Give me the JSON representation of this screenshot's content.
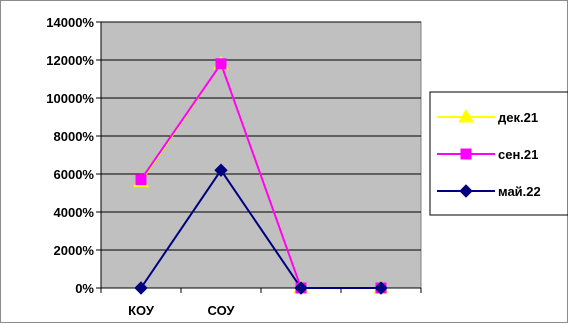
{
  "chart_data": {
    "type": "line",
    "categories": [
      "КОУ",
      "СОУ",
      "",
      ""
    ],
    "y_axis": {
      "min": 0,
      "max": 14000,
      "step": 2000,
      "tick_labels": [
        "0%",
        "2000%",
        "4000%",
        "6000%",
        "8000%",
        "10000%",
        "12000%",
        "14000%"
      ]
    },
    "grid": true,
    "legend_position": "right",
    "plot_background": "#c0c0c0",
    "series": [
      {
        "name": "дек.21",
        "color": "#ffff00",
        "marker": "triangle",
        "values": [
          5600,
          11800,
          0,
          0
        ]
      },
      {
        "name": "сен.21",
        "color": "#ff00ff",
        "marker": "square",
        "values": [
          5700,
          11800,
          0,
          0
        ]
      },
      {
        "name": "май.22",
        "color": "#000080",
        "marker": "diamond",
        "values": [
          0,
          6200,
          0,
          0
        ]
      }
    ]
  }
}
